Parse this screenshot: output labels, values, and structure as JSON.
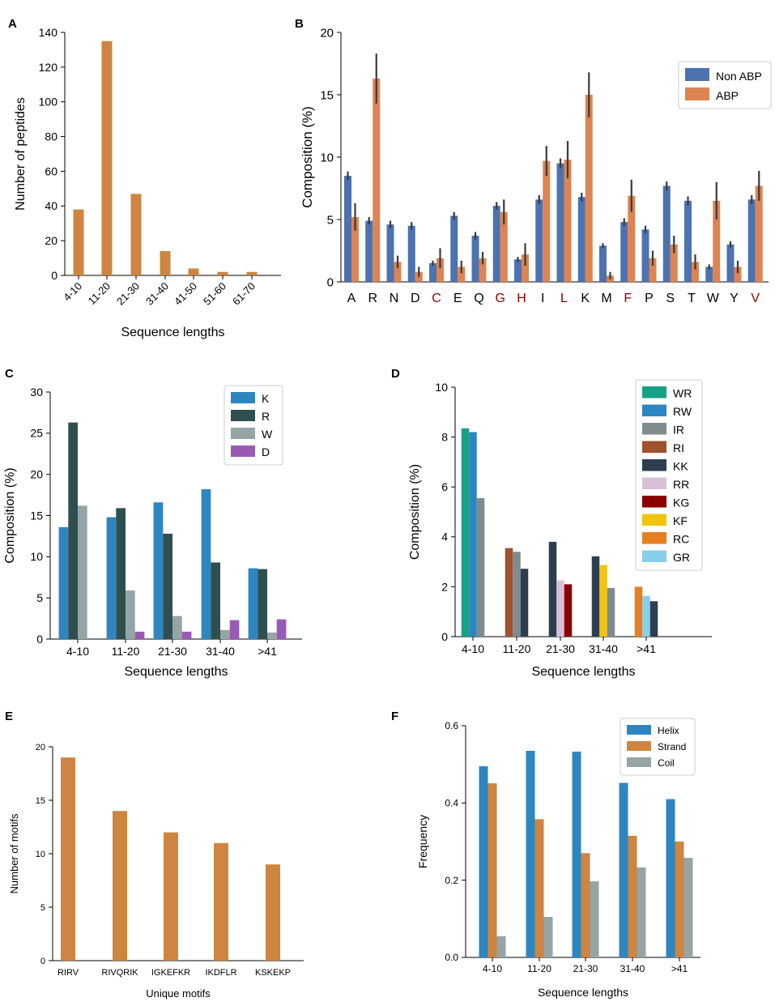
{
  "chart_data": [
    {
      "panel": "A",
      "type": "bar",
      "categories": [
        "4-10",
        "11-20",
        "21-30",
        "31-40",
        "41-50",
        "51-60",
        "61-70"
      ],
      "values": [
        38,
        135,
        47,
        14,
        4,
        2,
        2
      ],
      "xlabel": "Sequence lengths",
      "ylabel": "Number of peptides",
      "ylim": [
        0,
        140
      ],
      "yticks": [
        "0",
        "20",
        "40",
        "60",
        "80",
        "100",
        "120",
        "140"
      ],
      "xtick_rotation": "rotated 45 degrees",
      "color": "#CD853F"
    },
    {
      "panel": "B",
      "type": "bar",
      "categories": [
        "A",
        "R",
        "N",
        "D",
        "C",
        "E",
        "Q",
        "G",
        "H",
        "I",
        "L",
        "K",
        "M",
        "F",
        "P",
        "S",
        "T",
        "W",
        "Y",
        "V"
      ],
      "highlighted_categories": [
        "C",
        "G",
        "H",
        "L",
        "F",
        "V"
      ],
      "highlight_color": "#8B0000",
      "series": [
        {
          "name": "Non ABP",
          "color": "#4C72B0",
          "values": [
            8.5,
            4.9,
            4.6,
            4.5,
            1.5,
            5.3,
            3.7,
            6.1,
            1.8,
            6.6,
            9.5,
            6.8,
            2.9,
            4.8,
            4.2,
            7.7,
            6.5,
            1.2,
            3.0,
            6.6
          ],
          "err": [
            0.35,
            0.3,
            0.3,
            0.3,
            0.2,
            0.3,
            0.3,
            0.3,
            0.2,
            0.35,
            0.4,
            0.35,
            0.2,
            0.3,
            0.3,
            0.35,
            0.35,
            0.2,
            0.25,
            0.35
          ]
        },
        {
          "name": "ABP",
          "color": "#DD8452",
          "values": [
            5.2,
            16.3,
            1.6,
            0.8,
            1.9,
            1.2,
            1.9,
            5.6,
            2.2,
            9.7,
            9.8,
            15.0,
            0.5,
            6.9,
            1.9,
            3.0,
            1.6,
            6.5,
            1.2,
            7.7
          ],
          "err": [
            1.1,
            2.0,
            0.5,
            0.4,
            0.8,
            0.5,
            0.5,
            1.0,
            0.9,
            1.2,
            1.5,
            1.8,
            0.3,
            1.3,
            0.6,
            0.7,
            0.6,
            1.5,
            0.5,
            1.2
          ]
        }
      ],
      "ylabel": "Composition (%)",
      "ylim": [
        0,
        20
      ],
      "yticks": [
        "0",
        "5",
        "10",
        "15",
        "20"
      ],
      "legend": "top-right"
    },
    {
      "panel": "C",
      "type": "bar",
      "categories": [
        "4-10",
        "11-20",
        "21-30",
        "31-40",
        ">41"
      ],
      "series": [
        {
          "name": "K",
          "color": "#2E86C1",
          "values": [
            13.6,
            14.8,
            16.6,
            18.2,
            8.6
          ]
        },
        {
          "name": "R",
          "color": "#2F4F4F",
          "values": [
            26.3,
            15.9,
            12.8,
            9.3,
            8.5
          ]
        },
        {
          "name": "W",
          "color": "#95A5A6",
          "values": [
            16.2,
            5.9,
            2.8,
            1.1,
            0.8
          ]
        },
        {
          "name": "D",
          "color": "#9B59B6",
          "values": [
            0,
            0.9,
            0.9,
            2.3,
            2.4
          ]
        }
      ],
      "xlabel": "Sequence lengths",
      "ylabel": "Composition (%)",
      "ylim": [
        0,
        30
      ],
      "yticks": [
        "0",
        "5",
        "10",
        "15",
        "20",
        "25",
        "30"
      ],
      "legend": "top-right"
    },
    {
      "panel": "D",
      "type": "bar",
      "categories": [
        "4-10",
        "11-20",
        "21-30",
        "31-40",
        ">41"
      ],
      "legend_entries": [
        {
          "name": "WR",
          "color": "#16A085"
        },
        {
          "name": "RW",
          "color": "#2E86C1"
        },
        {
          "name": "IR",
          "color": "#7F8C8D"
        },
        {
          "name": "RI",
          "color": "#A0522D"
        },
        {
          "name": "KK",
          "color": "#2C3E50"
        },
        {
          "name": "RR",
          "color": "#D8BFD8"
        },
        {
          "name": "KG",
          "color": "#8B0000"
        },
        {
          "name": "KF",
          "color": "#F1C40F"
        },
        {
          "name": "RC",
          "color": "#E67E22"
        },
        {
          "name": "GR",
          "color": "#87CEEB"
        }
      ],
      "groups": [
        [
          {
            "name": "WR",
            "value": 8.35
          },
          {
            "name": "RW",
            "value": 8.2
          },
          {
            "name": "IR",
            "value": 5.55
          }
        ],
        [
          {
            "name": "RI",
            "value": 3.55
          },
          {
            "name": "IR",
            "value": 3.4
          },
          {
            "name": "KK",
            "value": 2.72
          }
        ],
        [
          {
            "name": "KK",
            "value": 3.8
          },
          {
            "name": "RR",
            "value": 2.25
          },
          {
            "name": "KG",
            "value": 2.1
          }
        ],
        [
          {
            "name": "KK",
            "value": 3.22
          },
          {
            "name": "KF",
            "value": 2.87
          },
          {
            "name": "IR",
            "value": 1.95
          }
        ],
        [
          {
            "name": "RC",
            "value": 2.0
          },
          {
            "name": "GR",
            "value": 1.63
          },
          {
            "name": "KK",
            "value": 1.42
          }
        ]
      ],
      "xlabel": "Sequence lengths",
      "ylabel": "Composition (%)",
      "ylim": [
        0,
        10
      ],
      "yticks": [
        "0",
        "2",
        "4",
        "6",
        "8",
        "10"
      ],
      "legend": "top-right"
    },
    {
      "panel": "E",
      "type": "bar",
      "categories": [
        "RIRV",
        "RIVQRIK",
        "IGKEFKR",
        "IKDFLR",
        "KSKEKP"
      ],
      "values": [
        19,
        14,
        12,
        11,
        9
      ],
      "xlabel": "Unique motifs",
      "ylabel": "Number of motifs",
      "ylim": [
        0,
        20
      ],
      "yticks": [
        "0",
        "5",
        "10",
        "15",
        "20"
      ],
      "color": "#CD853F"
    },
    {
      "panel": "F",
      "type": "bar",
      "categories": [
        "4-10",
        "11-20",
        "21-30",
        "31-40",
        ">41"
      ],
      "series": [
        {
          "name": "Helix",
          "color": "#2E86C1",
          "values": [
            0.495,
            0.535,
            0.533,
            0.452,
            0.41
          ]
        },
        {
          "name": "Strand",
          "color": "#CD853F",
          "values": [
            0.451,
            0.358,
            0.27,
            0.315,
            0.3
          ]
        },
        {
          "name": "Coil",
          "color": "#95A5A6",
          "values": [
            0.055,
            0.105,
            0.197,
            0.233,
            0.258
          ]
        }
      ],
      "xlabel": "Sequence lengths",
      "ylabel": "Frequency",
      "ylim": [
        0,
        0.6
      ],
      "yticks": [
        "0.0",
        "0.2",
        "0.4",
        "0.6"
      ],
      "legend": "top-right"
    }
  ]
}
